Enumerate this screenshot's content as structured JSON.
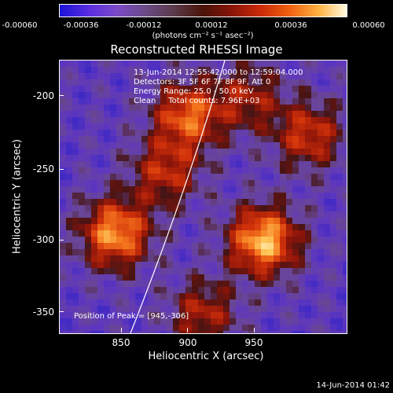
{
  "colorbar": {
    "tick_labels": [
      "-0.00060",
      "-0.00036",
      "-0.00012",
      "0.00012",
      "0.00036",
      "0.00060"
    ],
    "units": "(photons cm⁻² s⁻¹ asec⁻²)",
    "gradient": [
      "#1a12d8",
      "#7a4bc8",
      "#4a1208",
      "#cc2a08",
      "#ffb040",
      "#fffbe0"
    ]
  },
  "title": "Reconstructed RHESSI Image",
  "info": {
    "time_range": "13-Jun-2014 12:55:42.000 to 12:59:04.000",
    "detectors": "Detectors: 3F 5F 6F 7F 8F 9F, Att 0",
    "energy": "Energy Range: 25.0 - 50.0 keV",
    "clean": "Clean     Total counts: 7.96E+03"
  },
  "peak_label": "Position of Peak = [945,-306]",
  "axes": {
    "xlabel": "Heliocentric X (arcsec)",
    "ylabel": "Heliocentric Y (arcsec)",
    "xticks": [
      "850",
      "900",
      "950"
    ],
    "yticks": [
      "-200",
      "-250",
      "-300",
      "-350"
    ],
    "xlim": [
      810,
      1000
    ],
    "ylim": [
      -368,
      -185
    ]
  },
  "image": {
    "peaks": [
      {
        "x": 945,
        "y": -306,
        "strength": 1.0
      },
      {
        "x": 847,
        "y": -301,
        "strength": 0.9
      },
      {
        "x": 895,
        "y": -222,
        "strength": 0.75
      },
      {
        "x": 880,
        "y": -260,
        "strength": 0.55
      },
      {
        "x": 975,
        "y": -235,
        "strength": 0.6
      },
      {
        "x": 935,
        "y": -210,
        "strength": 0.45
      },
      {
        "x": 905,
        "y": -355,
        "strength": 0.5
      }
    ],
    "limb_color": "#ffffff"
  },
  "timestamp": "14-Jun-2014 01:42"
}
